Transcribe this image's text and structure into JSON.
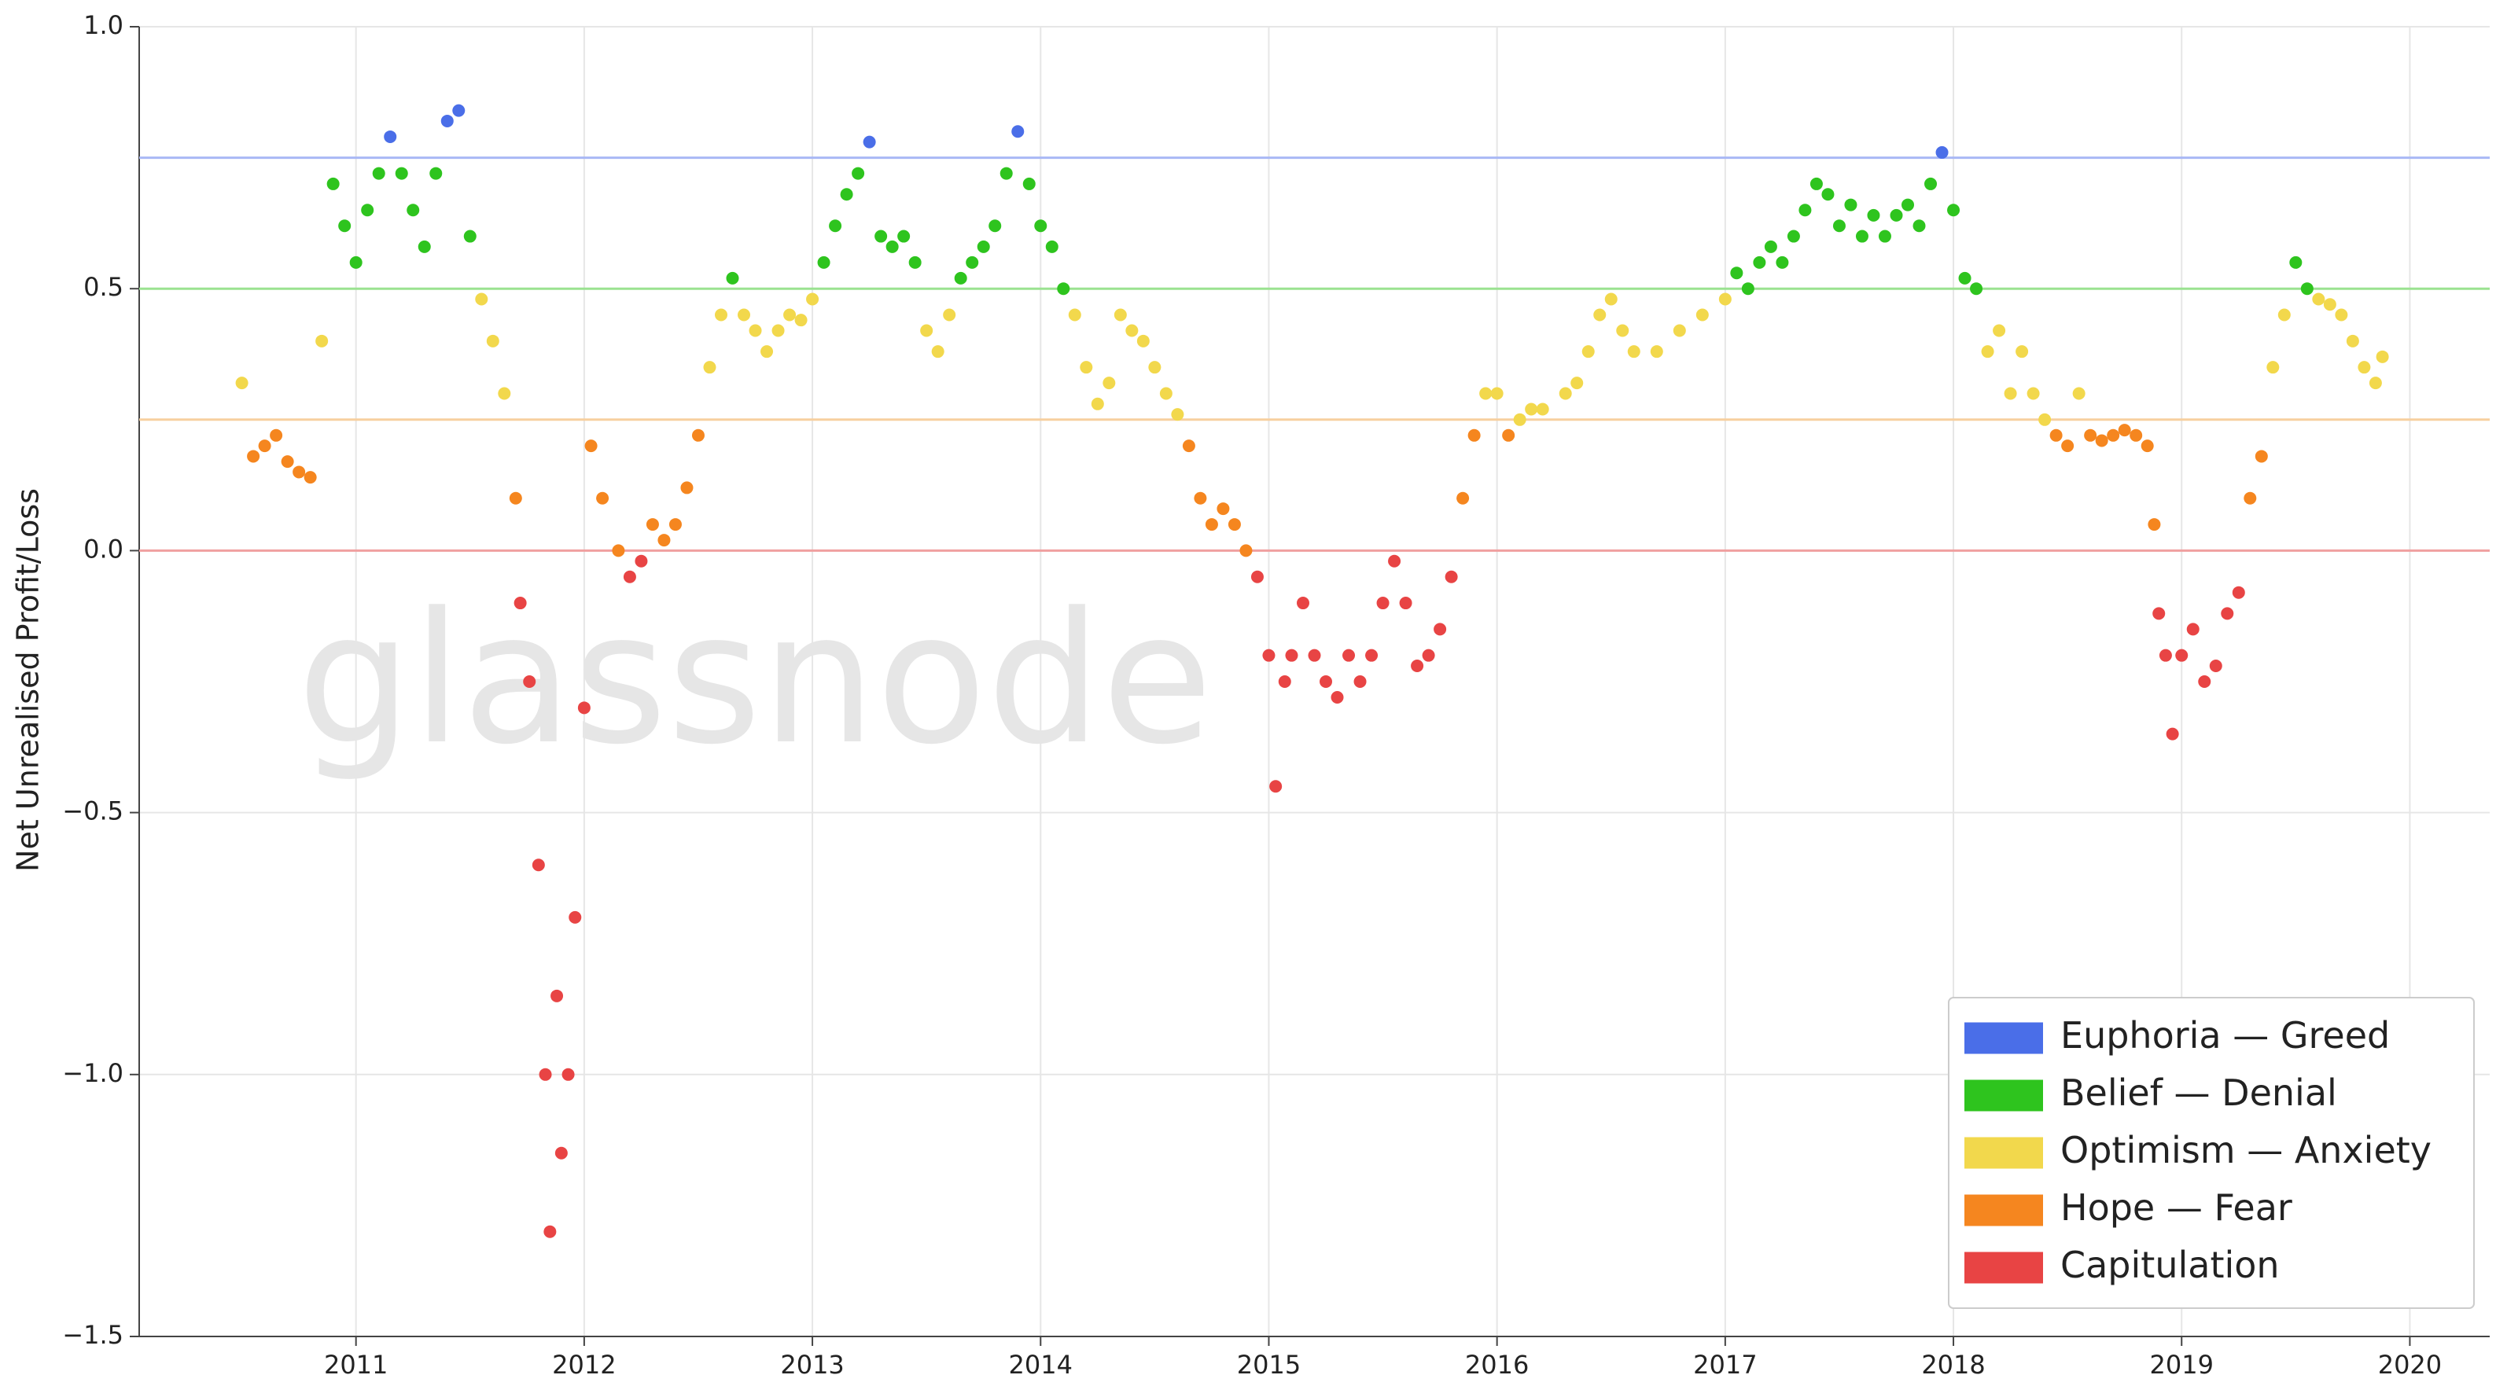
{
  "chart_data": {
    "type": "scatter",
    "y_label": "Net Unrealised Profit/Loss",
    "watermark": "glassnode",
    "xlim": [
      2010.05,
      2020.35
    ],
    "xticks": [
      2011,
      2012,
      2013,
      2014,
      2015,
      2016,
      2017,
      2018,
      2019,
      2020
    ],
    "ylim": [
      -1.5,
      1.0
    ],
    "yticks": [
      {
        "value": -1.5,
        "label": "−1.5"
      },
      {
        "value": -1,
        "label": "−1.0"
      },
      {
        "value": -0.5,
        "label": "−0.5"
      },
      {
        "value": 0,
        "label": "0.0"
      },
      0.5,
      {
        "value": 1,
        "label": "1.0"
      }
    ],
    "grid": true,
    "legend_position": "lower-right",
    "reference_lines": [
      {
        "value": 0.75,
        "color": "#a9b8f5"
      },
      {
        "value": 0.5,
        "color": "#9be291"
      },
      {
        "value": 0.25,
        "color": "#f7cf9f"
      },
      {
        "value": 0,
        "color": "#f0a0a0"
      }
    ],
    "series": [
      {
        "name": "Euphoria — Greed",
        "color": "#4a6ee8",
        "x": [
          2011.15,
          2011.4,
          2011.45,
          2013.25,
          2013.9,
          2017.95
        ],
        "values": [
          0.79,
          0.82,
          0.84,
          0.78,
          0.8,
          0.76
        ]
      },
      {
        "name": "Belief — Denial",
        "color": "#2ec41e",
        "x": [
          2010.9,
          2010.95,
          2011.0,
          2011.05,
          2011.1,
          2011.2,
          2011.25,
          2011.3,
          2011.35,
          2011.5,
          2012.65,
          2013.05,
          2013.1,
          2013.15,
          2013.2,
          2013.3,
          2013.35,
          2013.4,
          2013.45,
          2013.65,
          2013.7,
          2013.75,
          2013.8,
          2013.85,
          2013.95,
          2014.0,
          2014.05,
          2014.1,
          2017.05,
          2017.1,
          2017.15,
          2017.2,
          2017.25,
          2017.3,
          2017.35,
          2017.4,
          2017.45,
          2017.5,
          2017.55,
          2017.6,
          2017.65,
          2017.7,
          2017.75,
          2017.8,
          2017.85,
          2017.9,
          2018.0,
          2018.05,
          2018.1,
          2019.5,
          2019.55
        ],
        "values": [
          0.7,
          0.62,
          0.55,
          0.65,
          0.72,
          0.72,
          0.65,
          0.58,
          0.72,
          0.6,
          0.52,
          0.55,
          0.62,
          0.68,
          0.72,
          0.6,
          0.58,
          0.6,
          0.55,
          0.52,
          0.55,
          0.58,
          0.62,
          0.72,
          0.7,
          0.62,
          0.58,
          0.5,
          0.53,
          0.5,
          0.55,
          0.58,
          0.55,
          0.6,
          0.65,
          0.7,
          0.68,
          0.62,
          0.66,
          0.6,
          0.64,
          0.6,
          0.64,
          0.66,
          0.62,
          0.7,
          0.65,
          0.52,
          0.5,
          0.55,
          0.5
        ]
      },
      {
        "name": "Optimism — Anxiety",
        "color": "#f2d84c",
        "x": [
          2010.5,
          2010.85,
          2011.55,
          2011.6,
          2011.65,
          2012.55,
          2012.6,
          2012.7,
          2012.75,
          2012.8,
          2012.85,
          2012.9,
          2012.95,
          2013.0,
          2013.5,
          2013.55,
          2013.6,
          2014.15,
          2014.2,
          2014.25,
          2014.3,
          2014.35,
          2014.4,
          2014.45,
          2014.5,
          2014.55,
          2014.6,
          2015.95,
          2016.0,
          2016.1,
          2016.15,
          2016.2,
          2016.3,
          2016.35,
          2016.4,
          2016.45,
          2016.5,
          2016.55,
          2016.6,
          2016.7,
          2016.8,
          2016.9,
          2017.0,
          2018.15,
          2018.2,
          2018.25,
          2018.3,
          2018.35,
          2018.4,
          2018.55,
          2019.4,
          2019.45,
          2019.6,
          2019.65,
          2019.7,
          2019.75,
          2019.8,
          2019.85,
          2019.88
        ],
        "values": [
          0.32,
          0.4,
          0.48,
          0.4,
          0.3,
          0.35,
          0.45,
          0.45,
          0.42,
          0.38,
          0.42,
          0.45,
          0.44,
          0.48,
          0.42,
          0.38,
          0.45,
          0.45,
          0.35,
          0.28,
          0.32,
          0.45,
          0.42,
          0.4,
          0.35,
          0.3,
          0.26,
          0.3,
          0.3,
          0.25,
          0.27,
          0.27,
          0.3,
          0.32,
          0.38,
          0.45,
          0.48,
          0.42,
          0.38,
          0.38,
          0.42,
          0.45,
          0.48,
          0.38,
          0.42,
          0.3,
          0.38,
          0.3,
          0.25,
          0.3,
          0.35,
          0.45,
          0.48,
          0.47,
          0.45,
          0.4,
          0.35,
          0.32,
          0.37
        ]
      },
      {
        "name": "Hope — Fear",
        "color": "#f5861f",
        "x": [
          2010.55,
          2010.6,
          2010.65,
          2010.7,
          2010.75,
          2010.8,
          2011.7,
          2012.03,
          2012.08,
          2012.15,
          2012.3,
          2012.35,
          2012.4,
          2012.45,
          2012.5,
          2014.65,
          2014.7,
          2014.75,
          2014.8,
          2014.85,
          2014.9,
          2015.85,
          2015.9,
          2016.05,
          2018.45,
          2018.5,
          2018.6,
          2018.65,
          2018.7,
          2018.75,
          2018.8,
          2018.85,
          2018.88,
          2019.3,
          2019.35
        ],
        "values": [
          0.18,
          0.2,
          0.22,
          0.17,
          0.15,
          0.14,
          0.1,
          0.2,
          0.1,
          0.0,
          0.05,
          0.02,
          0.05,
          0.12,
          0.22,
          0.2,
          0.1,
          0.05,
          0.08,
          0.05,
          0.0,
          0.1,
          0.22,
          0.22,
          0.22,
          0.2,
          0.22,
          0.21,
          0.22,
          0.23,
          0.22,
          0.2,
          0.05,
          0.1,
          0.18
        ]
      },
      {
        "name": "Capitulation",
        "color": "#e84444",
        "x": [
          2011.72,
          2011.76,
          2011.8,
          2011.83,
          2011.85,
          2011.88,
          2011.9,
          2011.93,
          2011.96,
          2012.0,
          2012.2,
          2012.25,
          2014.95,
          2015.0,
          2015.03,
          2015.07,
          2015.1,
          2015.15,
          2015.2,
          2015.25,
          2015.3,
          2015.35,
          2015.4,
          2015.45,
          2015.5,
          2015.55,
          2015.6,
          2015.65,
          2015.7,
          2015.75,
          2015.8,
          2018.9,
          2018.93,
          2018.96,
          2019.0,
          2019.05,
          2019.1,
          2019.15,
          2019.2,
          2019.25
        ],
        "values": [
          -0.1,
          -0.25,
          -0.6,
          -1.0,
          -1.3,
          -0.85,
          -1.15,
          -1.0,
          -0.7,
          -0.3,
          -0.05,
          -0.02,
          -0.05,
          -0.2,
          -0.45,
          -0.25,
          -0.2,
          -0.1,
          -0.2,
          -0.25,
          -0.28,
          -0.2,
          -0.25,
          -0.2,
          -0.1,
          -0.02,
          -0.1,
          -0.22,
          -0.2,
          -0.15,
          -0.05,
          -0.12,
          -0.2,
          -0.35,
          -0.2,
          -0.15,
          -0.25,
          -0.22,
          -0.12,
          -0.08
        ]
      }
    ]
  }
}
